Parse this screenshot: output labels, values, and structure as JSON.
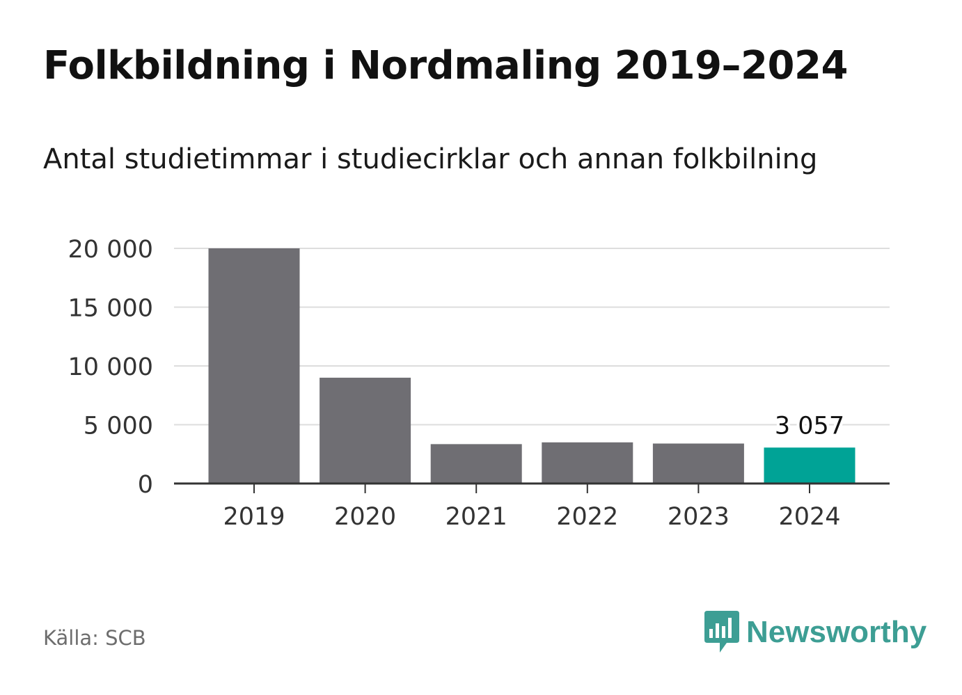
{
  "header": {
    "title": "Folkbildning i Nordmaling 2019–2024",
    "subtitle": "Antal studietimmar i studiecirklar och annan folkbilning"
  },
  "footer": {
    "source": "Källa: SCB",
    "brand": "Newsworthy",
    "brand_icon": "bar-chart-bubble-icon",
    "brand_color": "#3d9e94"
  },
  "chart_data": {
    "type": "bar",
    "categories": [
      "2019",
      "2020",
      "2021",
      "2022",
      "2023",
      "2024"
    ],
    "values": [
      20000,
      9000,
      3350,
      3500,
      3400,
      3057
    ],
    "ylim": [
      0,
      20000
    ],
    "yticks": [
      0,
      5000,
      10000,
      15000,
      20000
    ],
    "ytick_labels": [
      "0",
      "5 000",
      "10 000",
      "15 000",
      "20 000"
    ],
    "value_labels": [
      {
        "index": 5,
        "text": "3 057"
      }
    ],
    "title": "",
    "xlabel": "",
    "ylabel": "",
    "grid": true,
    "legend": "none",
    "colors": {
      "bar": "#6f6e73",
      "highlight": "#00a396",
      "grid": "#dddddd",
      "axis": "#333333",
      "tick_text": "#333333",
      "value_text": "#111111"
    },
    "highlight_index": 5
  }
}
